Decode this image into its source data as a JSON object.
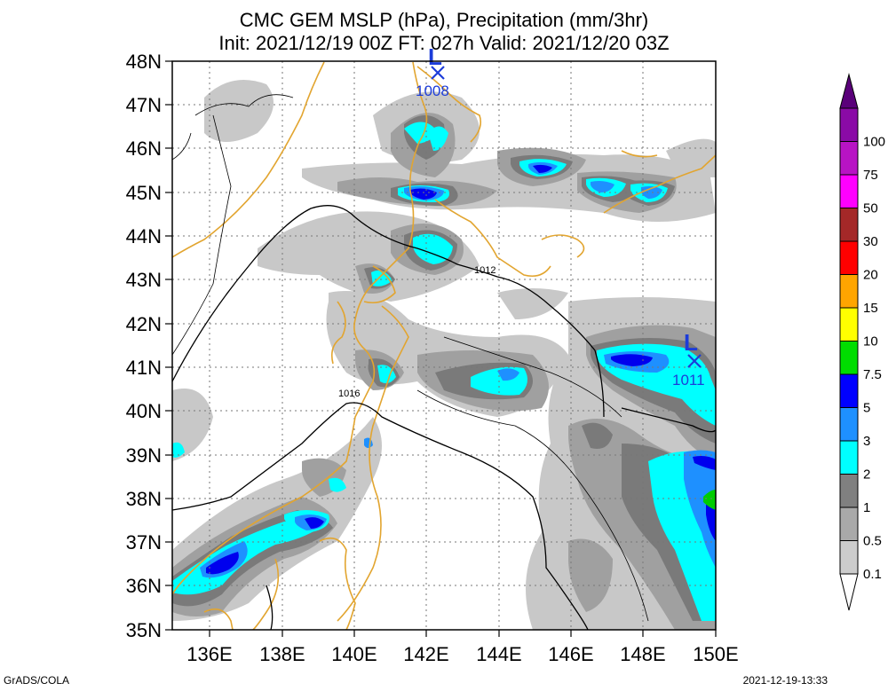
{
  "title": {
    "line1": "CMC GEM MSLP (hPa), Precipitation (mm/3hr)",
    "line2": "Init: 2021/12/19 00Z  FT: 027h  Valid: 2021/12/20 03Z"
  },
  "footer": {
    "left": "GrADS/COLA",
    "right": "2021-12-19-13:33"
  },
  "axes": {
    "lat_labels": [
      "48N",
      "47N",
      "46N",
      "45N",
      "44N",
      "43N",
      "42N",
      "41N",
      "40N",
      "39N",
      "38N",
      "37N",
      "36N",
      "35N"
    ],
    "lon_labels": [
      "136E",
      "138E",
      "140E",
      "142E",
      "144E",
      "146E",
      "148E",
      "150E"
    ]
  },
  "isobars": {
    "label_1012": "1012",
    "label_1016": "1016"
  },
  "lows": [
    {
      "symbol": "L",
      "value": "1008"
    },
    {
      "symbol": "L",
      "value": "1011"
    }
  ],
  "colorbar": {
    "labels": [
      "100",
      "75",
      "50",
      "30",
      "20",
      "15",
      "10",
      "7.5",
      "5",
      "3",
      "2",
      "1",
      "0.5",
      "0.1"
    ],
    "colors": [
      "#8a0aa6",
      "#b813c4",
      "#ff00ff",
      "#a42828",
      "#ff0000",
      "#ffa500",
      "#ffff00",
      "#00dd00",
      "#0000ff",
      "#1e90ff",
      "#00ffff",
      "#808080",
      "#a9a9a9",
      "#cccccc"
    ],
    "top_color": "#5a007a"
  },
  "colors": {
    "coast": "#e2a530",
    "isobar": "#000000",
    "low_marker": "#1c3cd9"
  }
}
